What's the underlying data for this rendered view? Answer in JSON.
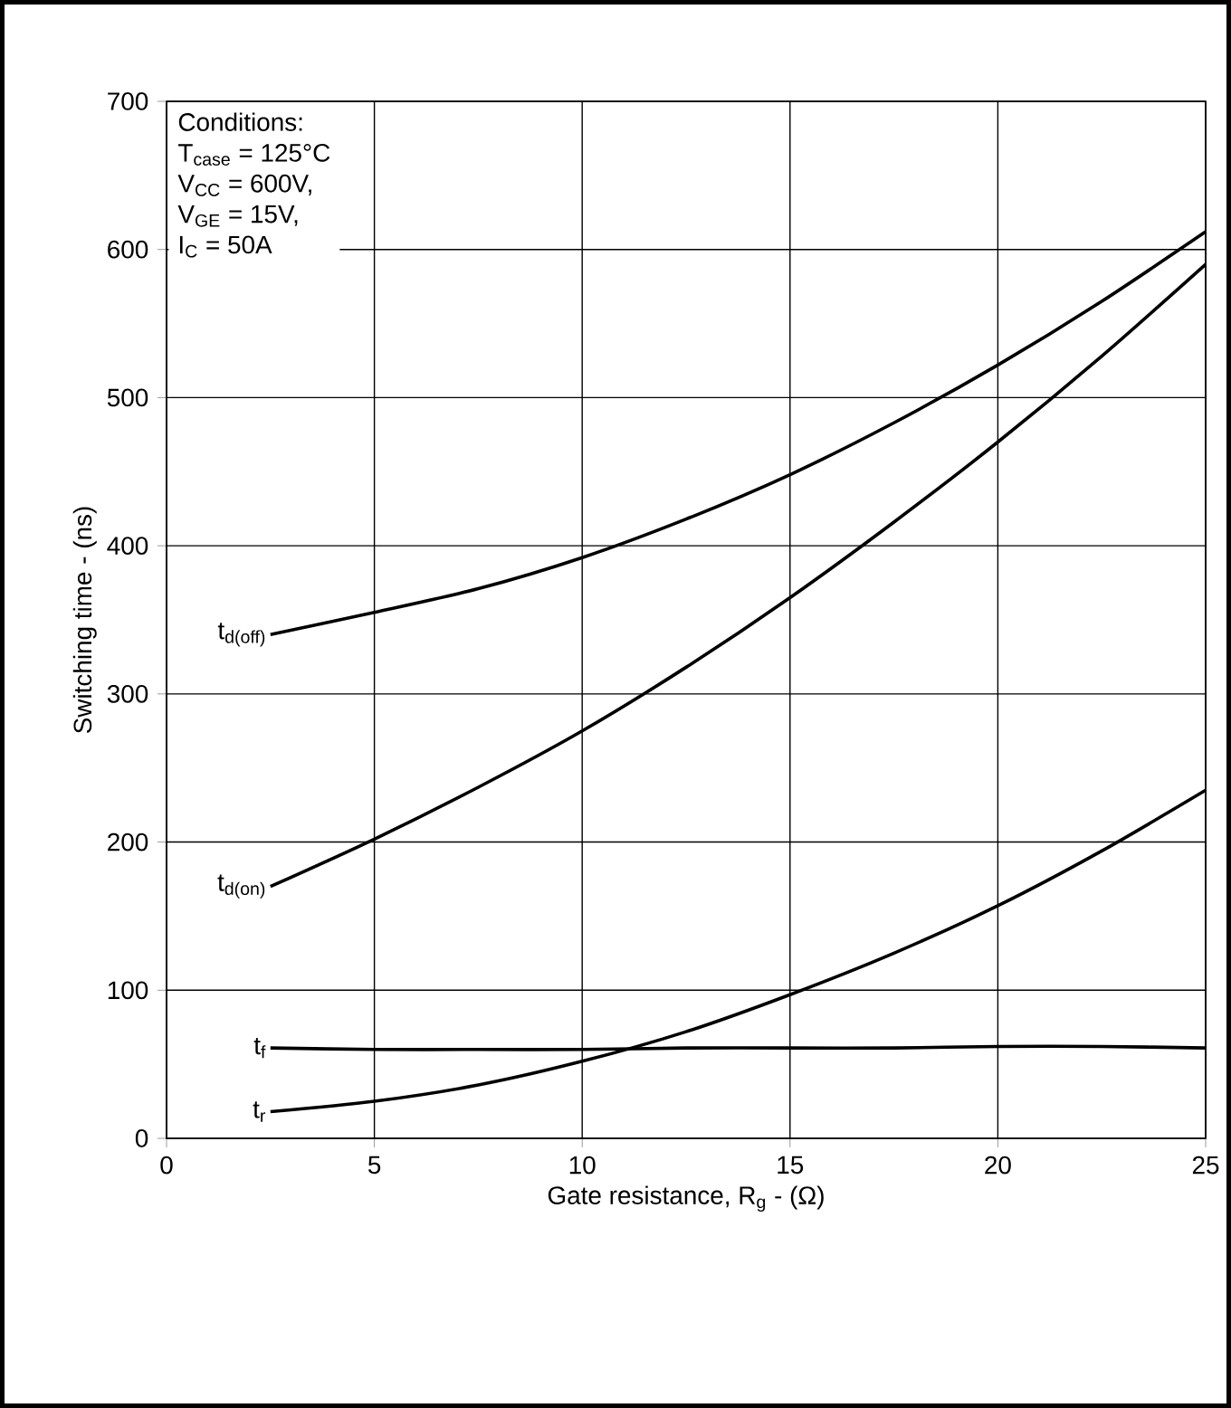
{
  "chart_data": {
    "type": "line",
    "xlabel": "Gate resistance, R$_{g}$ - (Ω)",
    "ylabel": "Switching time - (ns)",
    "xlim": [
      0,
      25
    ],
    "ylim": [
      0,
      700
    ],
    "xticks": [
      0,
      5,
      10,
      15,
      20,
      25
    ],
    "yticks": [
      0,
      100,
      200,
      300,
      400,
      500,
      600,
      700
    ],
    "grid": true,
    "marker": "none",
    "line_style": "solid",
    "annotations": [
      "Conditions:",
      "T$_{case}$ = 125°C",
      "V$_{CC}$ = 600V,",
      "V$_{GE}$ = 15V,",
      "I$_{C}$ = 50A"
    ],
    "series": [
      {
        "name": "t$_{d(off)}$",
        "color": "#000000",
        "x": [
          2.5,
          5,
          7.5,
          10,
          12.5,
          15,
          17.5,
          20,
          22.5,
          25
        ],
        "values": [
          340,
          355,
          371,
          392,
          418,
          448,
          483,
          522,
          565,
          612
        ]
      },
      {
        "name": "t$_{d(on)}$",
        "color": "#000000",
        "x": [
          2.5,
          5,
          7.5,
          10,
          12.5,
          15,
          17.5,
          20,
          22.5,
          25
        ],
        "values": [
          170,
          202,
          237,
          275,
          318,
          365,
          416,
          470,
          528,
          590
        ]
      },
      {
        "name": "t$_{f}$",
        "color": "#000000",
        "x": [
          2.5,
          5,
          7.5,
          10,
          12.5,
          15,
          17.5,
          20,
          22.5,
          25
        ],
        "values": [
          61,
          60,
          60,
          60,
          61,
          61,
          61,
          62,
          62,
          61
        ]
      },
      {
        "name": "t$_{r}$",
        "color": "#000000",
        "x": [
          2.5,
          5,
          7.5,
          10,
          12.5,
          15,
          17.5,
          20,
          22.5,
          25
        ],
        "values": [
          18,
          25,
          36,
          52,
          72,
          97,
          125,
          157,
          194,
          235
        ]
      }
    ]
  }
}
